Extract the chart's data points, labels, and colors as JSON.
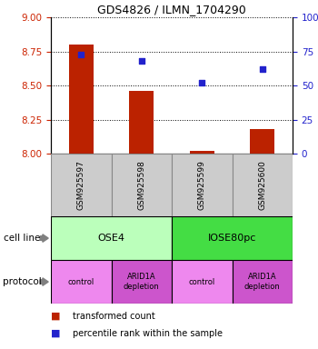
{
  "title": "GDS4826 / ILMN_1704290",
  "samples": [
    "GSM925597",
    "GSM925598",
    "GSM925599",
    "GSM925600"
  ],
  "bar_values": [
    8.8,
    8.46,
    8.02,
    8.18
  ],
  "bar_base": 8.0,
  "percentile_values": [
    73,
    68,
    52,
    62
  ],
  "ylim_left": [
    8.0,
    9.0
  ],
  "ylim_right": [
    0,
    100
  ],
  "left_ticks": [
    8.0,
    8.25,
    8.5,
    8.75,
    9.0
  ],
  "right_ticks": [
    0,
    25,
    50,
    75,
    100
  ],
  "right_tick_labels": [
    "0",
    "25",
    "50",
    "75",
    "100%"
  ],
  "bar_color": "#bb2200",
  "dot_color": "#2222cc",
  "cell_line_labels": [
    "OSE4",
    "IOSE80pc"
  ],
  "cell_line_spans": [
    [
      0,
      2
    ],
    [
      2,
      4
    ]
  ],
  "cell_line_colors": [
    "#bbffbb",
    "#44dd44"
  ],
  "protocol_labels": [
    "control",
    "ARID1A\ndepletion",
    "control",
    "ARID1A\ndepletion"
  ],
  "protocol_colors": [
    "#ee88ee",
    "#cc55cc",
    "#ee88ee",
    "#cc55cc"
  ],
  "row_label_cell": "cell line",
  "row_label_protocol": "protocol",
  "legend_bar_label": "transformed count",
  "legend_dot_label": "percentile rank within the sample",
  "tick_label_color_left": "#cc2200",
  "tick_label_color_right": "#2222cc",
  "sample_box_color": "#cccccc",
  "sample_box_edge": "#888888"
}
